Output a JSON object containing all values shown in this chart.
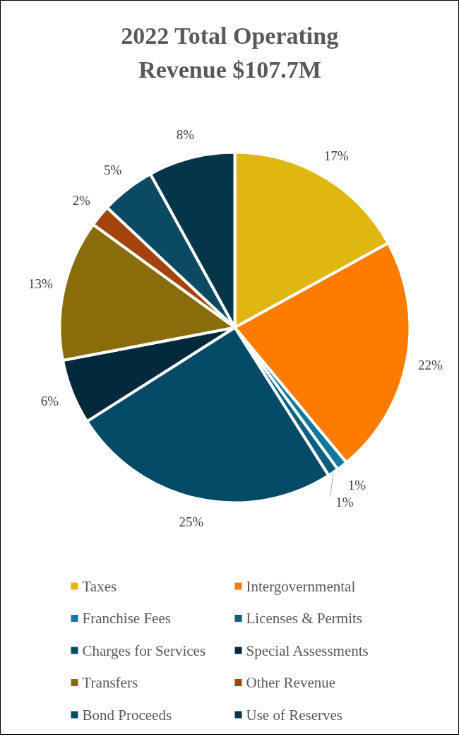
{
  "chart_data": {
    "type": "pie",
    "title": "2022 Total Operating Revenue $107.7M",
    "categories": [
      "Taxes",
      "Intergovernmental",
      "Franchise Fees",
      "Licenses & Permits",
      "Charges for Services",
      "Special Assessments",
      "Transfers",
      "Other Revenue",
      "Bond Proceeds",
      "Use of Reserves"
    ],
    "values": [
      17,
      22,
      1,
      1,
      25,
      6,
      13,
      2,
      5,
      8
    ],
    "value_labels": [
      "17%",
      "22%",
      "1%",
      "1%",
      "25%",
      "6%",
      "13%",
      "2%",
      "5%",
      "8%"
    ],
    "colors": [
      "#e0b610",
      "#ff7c00",
      "#0e7a9c",
      "#0b5f7e",
      "#034a66",
      "#03293d",
      "#8a6d0b",
      "#a3440c",
      "#0a4a62",
      "#053548"
    ],
    "legend": "bottom"
  }
}
